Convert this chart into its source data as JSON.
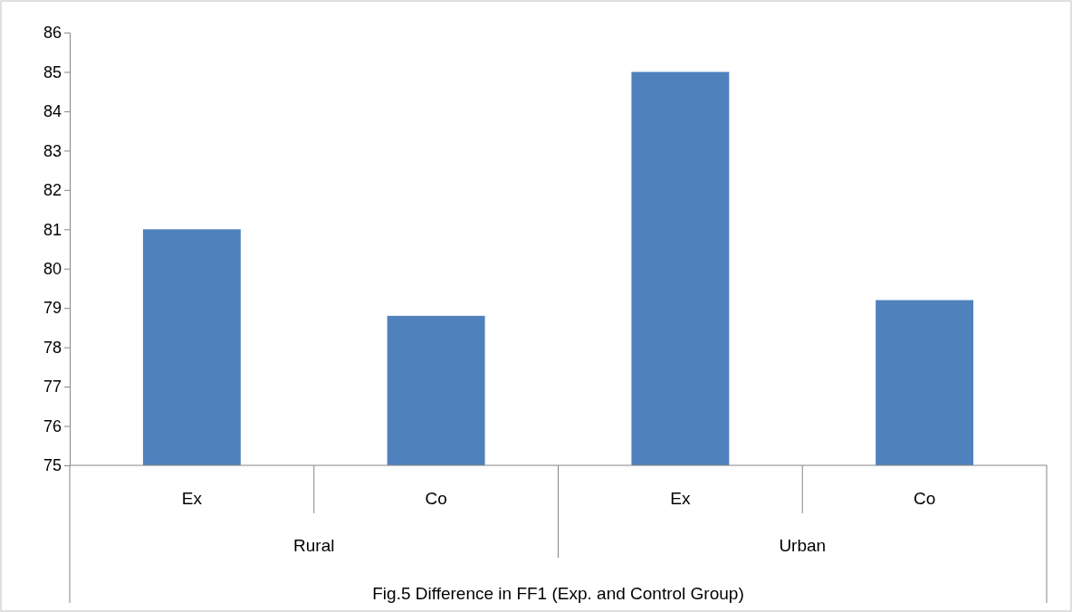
{
  "chart_data": {
    "type": "bar",
    "categories": [
      "Ex",
      "Co",
      "Ex",
      "Co"
    ],
    "values": [
      81.0,
      78.8,
      85.0,
      79.2
    ],
    "color": "#4f81bd",
    "ylim": [
      75,
      86
    ],
    "yticks": [
      75,
      76,
      77,
      78,
      79,
      80,
      81,
      82,
      83,
      84,
      85,
      86
    ],
    "grid": false,
    "xlabel": "Fig.5 Difference in FF1 (Exp. and Control Group)",
    "annotations": [
      "Rural",
      "Urban"
    ]
  }
}
